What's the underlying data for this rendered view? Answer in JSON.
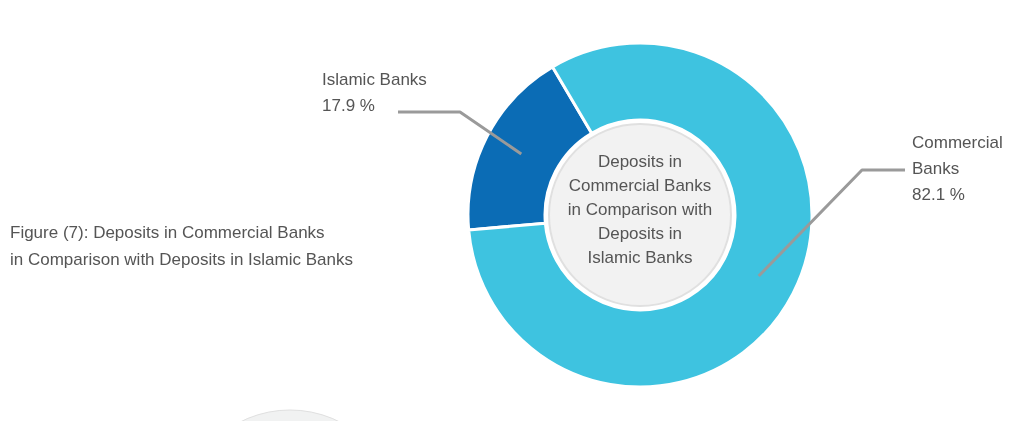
{
  "chart_data": {
    "type": "donut",
    "title": "Figure (7): Deposits in Commercial Banks\nin Comparison with Deposits in Islamic Banks",
    "subtitle": "Deposits in\nCommercial Banks\nin Comparison with\nDeposits in\nIslamic Banks",
    "categories": [
      "Islamic Banks",
      "Commercial Banks"
    ],
    "values": [
      17.9,
      82.1
    ],
    "colors": [
      "#0b6cb5",
      "#3ec3e0"
    ],
    "value_labels": [
      "17.9 %",
      "82.1 %"
    ]
  }
}
